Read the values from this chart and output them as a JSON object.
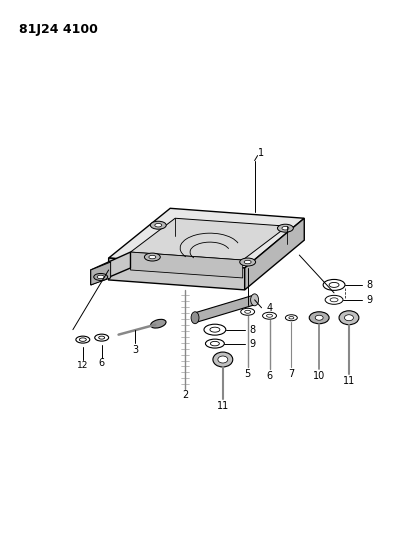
{
  "title": "81J24 4100",
  "bg_color": "#ffffff",
  "line_color": "#000000",
  "gray_fill": "#d0d0d0",
  "light_gray": "#e8e8e8",
  "dark_gray": "#a0a0a0"
}
